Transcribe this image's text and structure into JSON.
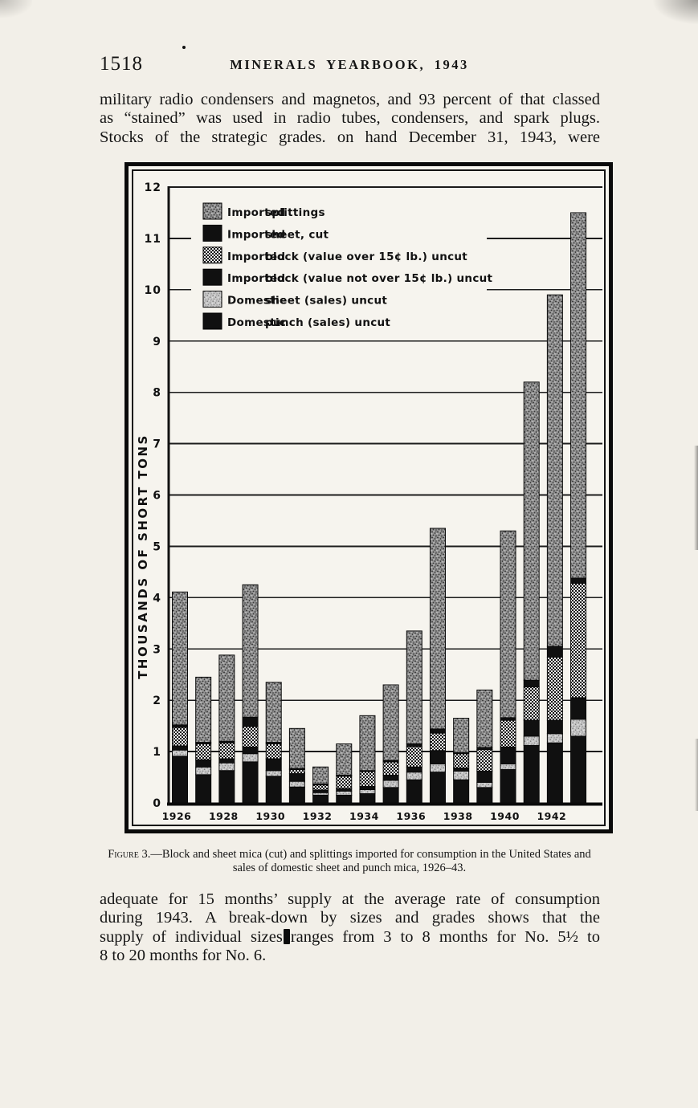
{
  "page": {
    "page_number": "1518",
    "running_header": "MINERALS YEARBOOK, 1943",
    "intro_paragraph_lines": [
      "military radio condensers and magnetos, and 93 percent of that classed",
      "as “stained” was used in radio tubes, condensers, and spark plugs.",
      "Stocks of the strategic grades. on hand December 31, 1943, were"
    ],
    "caption": {
      "figure_label": "Figure",
      "line1_rest": " 3.—Block and sheet mica (cut) and splittings imported for consumption in the United States and",
      "line2": "sales of domestic sheet and punch mica, 1926–43."
    },
    "closing_paragraph": {
      "line1": "adequate for 15 months’ supply at the average rate of consumption",
      "line2": "during 1943.  A break-down by sizes and grades shows that the",
      "line3_before_blot": "supply of individual sizes",
      "line3_after_blot": "ranges from 3 to 8 months for No. 5½ to",
      "line4": "8 to 20 months for No. 6."
    }
  },
  "chart_data": {
    "type": "bar",
    "stacked": true,
    "title": "",
    "xlabel": "",
    "ylabel": "THOUSANDS OF SHORT TONS",
    "ylim": [
      0,
      12
    ],
    "ytick_step": 1,
    "grid": "horizontal",
    "legend_position": "top-left-inside",
    "categories": [
      1926,
      1927,
      1928,
      1929,
      1930,
      1931,
      1932,
      1933,
      1934,
      1935,
      1936,
      1937,
      1938,
      1939,
      1940,
      1941,
      1942,
      1943
    ],
    "xtick_labels": [
      "1926",
      "1928",
      "1930",
      "1932",
      "1934",
      "1936",
      "1938",
      "1940",
      "1942"
    ],
    "series_order": "bottom_to_top",
    "series": [
      {
        "name": "Domestic punch (sales) uncut",
        "pattern": "solid",
        "values": [
          0.91,
          0.55,
          0.63,
          0.8,
          0.52,
          0.31,
          0.15,
          0.15,
          0.18,
          0.3,
          0.45,
          0.6,
          0.45,
          0.3,
          0.65,
          1.12,
          1.17,
          1.3
        ]
      },
      {
        "name": "Domestic sheet (sales) uncut",
        "pattern": "stipple-light",
        "values": [
          0.12,
          0.15,
          0.15,
          0.16,
          0.11,
          0.11,
          0.05,
          0.08,
          0.08,
          0.14,
          0.15,
          0.16,
          0.17,
          0.1,
          0.11,
          0.18,
          0.18,
          0.33
        ]
      },
      {
        "name": "Imported block (value not over 15¢ lb.) uncut",
        "pattern": "solid",
        "values": [
          0.08,
          0.14,
          0.08,
          0.13,
          0.23,
          0.15,
          0.05,
          0.05,
          0.06,
          0.1,
          0.1,
          0.26,
          0.06,
          0.22,
          0.33,
          0.31,
          0.26,
          0.42
        ]
      },
      {
        "name": "Imported block (value over 15¢ lb.) uncut",
        "pattern": "checker",
        "values": [
          0.36,
          0.31,
          0.31,
          0.4,
          0.29,
          0.08,
          0.1,
          0.24,
          0.29,
          0.26,
          0.4,
          0.34,
          0.28,
          0.42,
          0.52,
          0.65,
          1.23,
          2.23
        ]
      },
      {
        "name": "Imported sheet, cut",
        "pattern": "solid",
        "values": [
          0.05,
          0.03,
          0.03,
          0.18,
          0.03,
          0.02,
          0.02,
          0.02,
          0.02,
          0.03,
          0.05,
          0.08,
          0.02,
          0.04,
          0.05,
          0.13,
          0.21,
          0.1
        ]
      },
      {
        "name": "Imported splittings",
        "pattern": "stipple-dark",
        "values": [
          2.59,
          1.27,
          1.68,
          2.58,
          1.17,
          0.78,
          0.33,
          0.61,
          1.07,
          1.47,
          2.2,
          3.91,
          0.67,
          1.12,
          3.64,
          5.81,
          6.85,
          7.12
        ]
      }
    ],
    "totals": [
      4.11,
      2.45,
      2.88,
      4.25,
      2.35,
      1.45,
      0.7,
      1.15,
      1.7,
      2.3,
      3.35,
      5.35,
      1.65,
      2.2,
      5.3,
      8.2,
      9.9,
      11.5
    ],
    "legend": [
      {
        "group": "Imported",
        "item": "splittings",
        "pattern": "stipple-dark"
      },
      {
        "group": "Imported",
        "item": "sheet, cut",
        "pattern": "solid"
      },
      {
        "group": "Imported",
        "item": "block (value over 15¢ lb.) uncut",
        "pattern": "checker"
      },
      {
        "group": "Imported",
        "item": "block (value not over 15¢ lb.) uncut",
        "pattern": "solid"
      },
      {
        "group": "Domestic",
        "item": "sheet (sales) uncut",
        "pattern": "stipple-light"
      },
      {
        "group": "Domestic",
        "item": "punch (sales) uncut",
        "pattern": "solid"
      }
    ],
    "ink_colors": {
      "black": "#101010",
      "gray_dark": "#939393",
      "gray_light": "#c7c7c7"
    }
  }
}
